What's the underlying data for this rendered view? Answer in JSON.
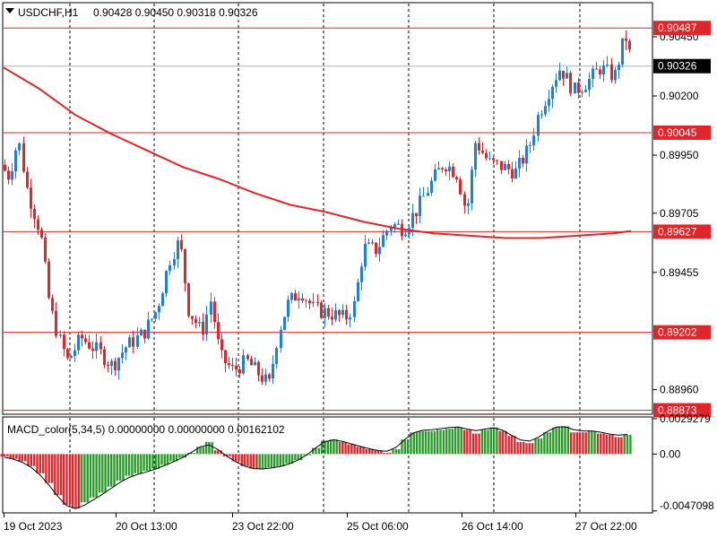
{
  "header": {
    "symbol_title": "USDCHF,H1",
    "ohlc": "0.90428 0.90450 0.90318 0.90326"
  },
  "chart_data": {
    "type": "candlestick",
    "symbol": "USDCHF",
    "timeframe": "H1",
    "ohlc_display": {
      "open": 0.90428,
      "high": 0.9045,
      "low": 0.90318,
      "close": 0.90326
    },
    "ylim": [
      0.8886,
      0.9059
    ],
    "y_tick_labels": [
      "0.90450",
      "0.90200",
      "0.89950",
      "0.89705",
      "0.89455",
      "0.88960"
    ],
    "horizontal_levels": [
      "0.90487",
      "0.90045",
      "0.89627",
      "0.89202",
      "0.88873"
    ],
    "current_price": "0.90326",
    "x_tick_labels": [
      "19 Oct 2023",
      "20 Oct 13:00",
      "23 Oct 22:00",
      "25 Oct 06:00",
      "26 Oct 14:00",
      "27 Oct 22:00"
    ],
    "ma_line": [
      [
        0,
        0.9032
      ],
      [
        40,
        0.9023
      ],
      [
        80,
        0.9012
      ],
      [
        120,
        0.9004
      ],
      [
        160,
        0.8997
      ],
      [
        200,
        0.899
      ],
      [
        240,
        0.8985
      ],
      [
        280,
        0.8979
      ],
      [
        320,
        0.8974
      ],
      [
        360,
        0.8971
      ],
      [
        400,
        0.8967
      ],
      [
        440,
        0.8964
      ],
      [
        480,
        0.8962
      ],
      [
        520,
        0.8961
      ],
      [
        560,
        0.896
      ],
      [
        600,
        0.896
      ],
      [
        640,
        0.8961
      ],
      [
        680,
        0.8962
      ],
      [
        700,
        0.8963
      ]
    ],
    "macd": {
      "title": "MACD_color(5,34,5) 0.00000000 0.00000000 0.00162102",
      "ylim": [
        -0.0048,
        0.003
      ],
      "y_tick_labels": [
        "0.0029279",
        "0.00",
        "-0.0047098"
      ],
      "histogram": [
        -0.0002,
        -0.0004,
        -0.0006,
        -0.001,
        -0.0016,
        -0.0024,
        -0.0034,
        -0.0042,
        -0.0045,
        -0.004,
        -0.0036,
        -0.0032,
        -0.0027,
        -0.0022,
        -0.0018,
        -0.0016,
        -0.0014,
        -0.0012,
        -0.0009,
        -0.0006,
        -0.0003,
        0.0001,
        0.0006,
        0.001,
        0.0003,
        -0.0002,
        -0.0006,
        -0.001,
        -0.0012,
        -0.0012,
        -0.0011,
        -0.001,
        -0.0008,
        -0.0005,
        -0.0001,
        0.0005,
        0.0011,
        0.0012,
        0.001,
        0.0008,
        0.0006,
        0.0004,
        0.0003,
        0.0001,
        0.0004,
        0.0012,
        0.0018,
        0.0019,
        0.0019,
        0.002,
        0.0021,
        0.0022,
        0.002,
        0.0017,
        0.002,
        0.0022,
        0.0019,
        0.0015,
        0.001,
        0.0009,
        0.0013,
        0.0018,
        0.0022,
        0.0023,
        0.0018,
        0.0018,
        0.0019,
        0.0017,
        0.0016,
        0.0014,
        0.0016
      ],
      "colors": [
        "red",
        "red",
        "red",
        "red",
        "red",
        "red",
        "red",
        "red",
        "red",
        "green",
        "green",
        "green",
        "green",
        "green",
        "green",
        "green",
        "green",
        "green",
        "green",
        "green",
        "green",
        "green",
        "green",
        "green",
        "red",
        "red",
        "red",
        "red",
        "red",
        "green",
        "green",
        "green",
        "green",
        "green",
        "green",
        "green",
        "green",
        "green",
        "red",
        "red",
        "red",
        "red",
        "red",
        "red",
        "green",
        "green",
        "green",
        "green",
        "green",
        "green",
        "green",
        "green",
        "red",
        "red",
        "green",
        "green",
        "red",
        "red",
        "red",
        "red",
        "green",
        "green",
        "green",
        "green",
        "red",
        "red",
        "green",
        "red",
        "red",
        "red",
        "green"
      ]
    }
  },
  "colors": {
    "bull": "#1f80d8",
    "bear": "#e0262a",
    "level": "#e0262a",
    "ma": "#e0262a",
    "macd_up": "#2a9a2a",
    "macd_down": "#e0262a",
    "current_price_bg": "#000000"
  }
}
